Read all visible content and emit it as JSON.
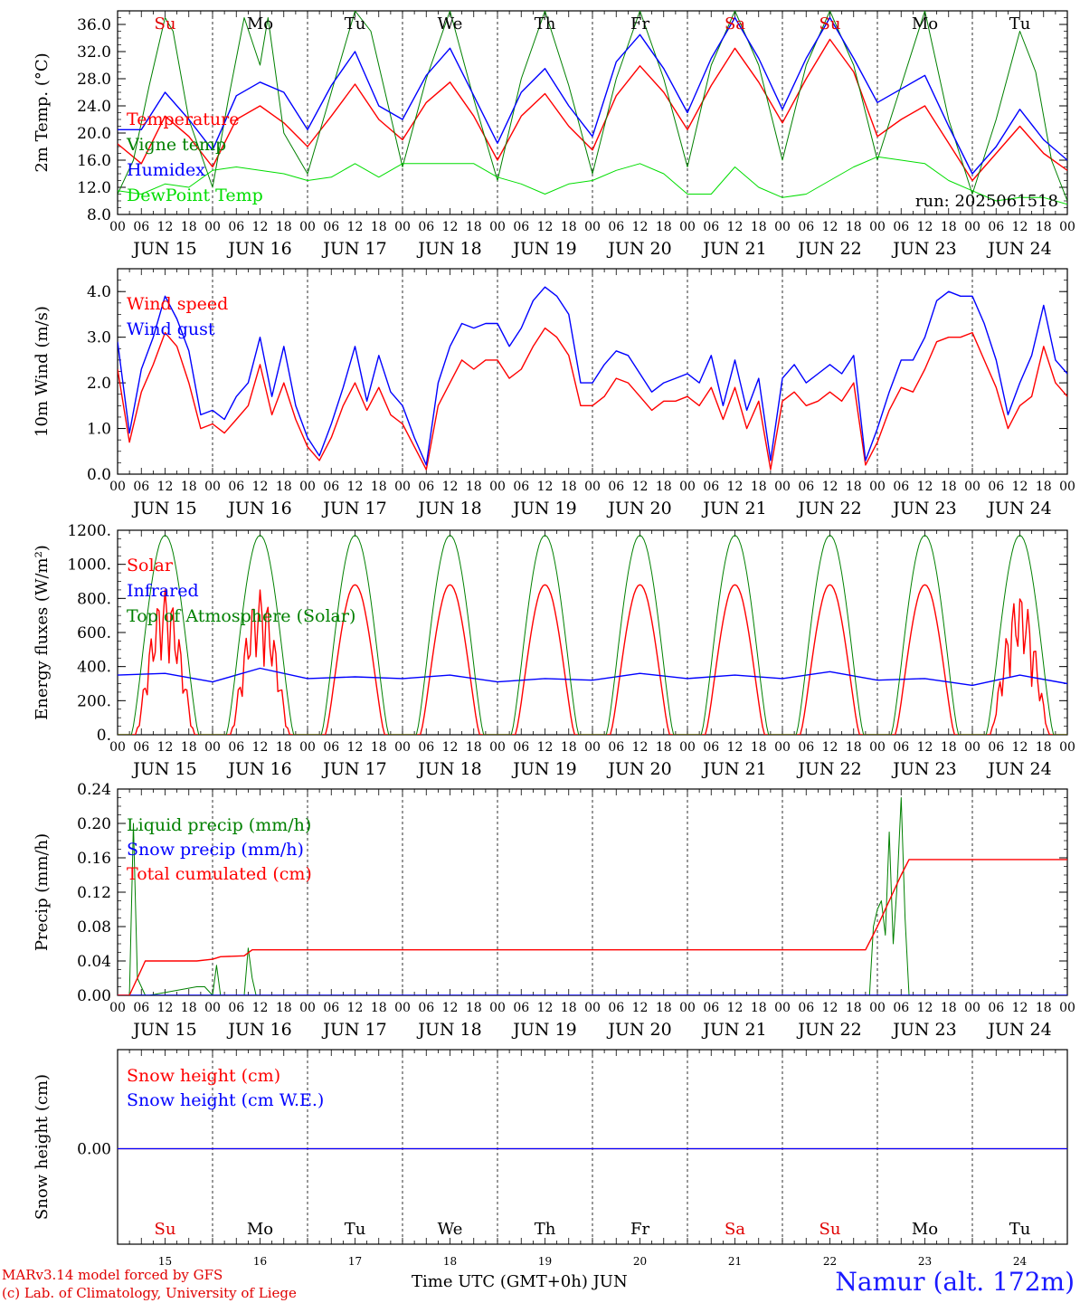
{
  "colors": {
    "red": "#ff0000",
    "blue": "#0000ff",
    "green": "#008000",
    "lightgreen": "#00dd00",
    "black": "#000000"
  },
  "day_names": [
    "Su",
    "Mo",
    "Tu",
    "We",
    "Th",
    "Fr",
    "Sa",
    "Su",
    "Mo",
    "Tu"
  ],
  "day_name_colors": [
    "#e00000",
    "#000000",
    "#000000",
    "#000000",
    "#000000",
    "#000000",
    "#e00000",
    "#e00000",
    "#000000",
    "#000000"
  ],
  "date_labels": [
    "JUN 15",
    "JUN 16",
    "JUN 17",
    "JUN 18",
    "JUN 19",
    "JUN 20",
    "JUN 21",
    "JUN 22",
    "JUN 23",
    "JUN 24"
  ],
  "day_numbers": [
    "15",
    "16",
    "17",
    "18",
    "19",
    "20",
    "21",
    "22",
    "23",
    "24"
  ],
  "hour_ticks": [
    "00",
    "06",
    "12",
    "18"
  ],
  "run_label": "run: 2025061518",
  "footer": {
    "credit_line1": "MARv3.14 model forced by GFS",
    "credit_line2": "(c) Lab. of Climatology, University of Liege",
    "xaxis_title": "Time UTC (GMT+0h) JUN",
    "station": "Namur (alt. 172m)"
  },
  "chart_data": [
    {
      "type": "line",
      "ylabel": "2m Temp. (°C)",
      "ylim": [
        8,
        38
      ],
      "yticks": [
        8.0,
        12.0,
        16.0,
        20.0,
        24.0,
        28.0,
        32.0,
        36.0
      ],
      "ytick_labels": [
        "8.0",
        "12.0",
        "16.0",
        "20.0",
        "24.0",
        "28.0",
        "32.0",
        "36.0"
      ],
      "x_unit": "hours since 2025-06-15 00 UTC",
      "series": [
        {
          "name": "Temperature",
          "color": "#ff0000",
          "x": [
            0,
            6,
            12,
            18,
            24,
            30,
            36,
            42,
            48,
            54,
            60,
            66,
            72,
            78,
            84,
            90,
            96,
            102,
            108,
            114,
            120,
            126,
            132,
            138,
            144,
            150,
            156,
            162,
            168,
            174,
            180,
            186,
            192,
            198,
            204,
            210,
            216,
            222,
            228,
            234,
            240
          ],
          "values": [
            18.4,
            15.5,
            22.5,
            19.5,
            15.0,
            22.0,
            24.0,
            21.5,
            18.0,
            22.5,
            27.2,
            22.0,
            19.0,
            24.5,
            27.5,
            22.5,
            16.0,
            22.5,
            25.8,
            21.0,
            17.5,
            25.5,
            29.9,
            26.0,
            20.5,
            27.0,
            32.5,
            27.5,
            21.5,
            28.0,
            33.8,
            29.0,
            19.5,
            22.0,
            24.0,
            18.5,
            13.0,
            17.0,
            21.0,
            17.0,
            14.5
          ]
        },
        {
          "name": "Vigne temp",
          "color": "#008000",
          "x": [
            0,
            4,
            8,
            12,
            14,
            18,
            24,
            28,
            32,
            36,
            38,
            42,
            48,
            54,
            60,
            64,
            72,
            78,
            84,
            90,
            96,
            102,
            108,
            114,
            120,
            126,
            132,
            138,
            144,
            150,
            156,
            162,
            168,
            174,
            180,
            186,
            192,
            198,
            204,
            210,
            216,
            222,
            228,
            232,
            236,
            240
          ],
          "values": [
            11.0,
            16.0,
            27.0,
            37.0,
            35.0,
            22.0,
            12.0,
            25.0,
            37.0,
            30.0,
            37.0,
            20.0,
            14.0,
            26.0,
            38.0,
            35.0,
            15.0,
            28.0,
            38.0,
            25.0,
            13.0,
            28.0,
            38.0,
            27.0,
            14.0,
            28.0,
            38.0,
            28.0,
            15.0,
            30.0,
            38.0,
            30.0,
            16.0,
            30.0,
            38.0,
            30.0,
            16.0,
            27.0,
            38.0,
            22.0,
            11.0,
            22.0,
            35.0,
            29.0,
            16.0,
            10.0
          ]
        },
        {
          "name": "Humidex",
          "color": "#0000ff",
          "x": [
            0,
            6,
            12,
            18,
            24,
            30,
            36,
            42,
            48,
            54,
            60,
            66,
            72,
            78,
            84,
            90,
            96,
            102,
            108,
            114,
            120,
            126,
            132,
            138,
            144,
            150,
            156,
            162,
            168,
            174,
            180,
            186,
            192,
            198,
            204,
            210,
            216,
            222,
            228,
            234,
            240
          ],
          "values": [
            20.5,
            20.5,
            26.0,
            22.0,
            17.5,
            25.5,
            27.5,
            26.0,
            20.5,
            27.0,
            32.0,
            24.0,
            22.0,
            28.5,
            32.5,
            25.5,
            18.5,
            26.0,
            29.5,
            24.0,
            19.5,
            30.5,
            34.5,
            29.5,
            23.0,
            31.0,
            37.0,
            31.0,
            23.5,
            31.0,
            37.0,
            31.0,
            24.5,
            26.5,
            28.5,
            21.0,
            14.0,
            18.0,
            23.5,
            19.0,
            16.0
          ]
        },
        {
          "name": "DewPoint Temp",
          "color": "#00dd00",
          "x": [
            0,
            6,
            12,
            18,
            24,
            30,
            36,
            42,
            48,
            54,
            60,
            66,
            72,
            78,
            84,
            90,
            96,
            102,
            108,
            114,
            120,
            126,
            132,
            138,
            144,
            150,
            156,
            162,
            168,
            174,
            180,
            186,
            192,
            198,
            204,
            210,
            216,
            222,
            228,
            234,
            240
          ],
          "values": [
            11.5,
            11.0,
            12.5,
            12.0,
            14.5,
            15.0,
            14.5,
            14.0,
            13.0,
            13.5,
            15.5,
            13.5,
            15.5,
            15.5,
            15.5,
            15.5,
            13.5,
            12.5,
            11.0,
            12.5,
            13.0,
            14.5,
            15.5,
            14.0,
            11.0,
            11.0,
            15.0,
            12.0,
            10.5,
            11.0,
            13.0,
            15.0,
            16.5,
            16.0,
            15.5,
            13.0,
            11.5,
            10.0,
            10.5,
            10.5,
            9.5
          ]
        }
      ]
    },
    {
      "type": "line",
      "ylabel": "10m Wind (m/s)",
      "ylim": [
        0,
        4.5
      ],
      "yticks": [
        0.0,
        1.0,
        2.0,
        3.0,
        4.0
      ],
      "ytick_labels": [
        "0.0",
        "1.0",
        "2.0",
        "3.0",
        "4.0"
      ],
      "x_unit": "hours since 2025-06-15 00 UTC",
      "series": [
        {
          "name": "Wind speed",
          "color": "#ff0000",
          "x": [
            0,
            3,
            6,
            9,
            12,
            15,
            18,
            21,
            24,
            27,
            30,
            33,
            36,
            39,
            42,
            45,
            48,
            51,
            54,
            57,
            60,
            63,
            66,
            69,
            72,
            75,
            78,
            81,
            84,
            87,
            90,
            93,
            96,
            99,
            102,
            105,
            108,
            111,
            114,
            117,
            120,
            123,
            126,
            129,
            132,
            135,
            138,
            141,
            144,
            147,
            150,
            153,
            156,
            159,
            162,
            165,
            168,
            171,
            174,
            177,
            180,
            183,
            186,
            189,
            192,
            195,
            198,
            201,
            204,
            207,
            210,
            213,
            216,
            219,
            222,
            225,
            228,
            231,
            234,
            237,
            240
          ],
          "values": [
            2.3,
            0.7,
            1.8,
            2.4,
            3.1,
            2.8,
            2.0,
            1.0,
            1.1,
            0.9,
            1.2,
            1.5,
            2.4,
            1.3,
            2.0,
            1.2,
            0.6,
            0.3,
            0.8,
            1.5,
            2.0,
            1.4,
            1.9,
            1.3,
            1.1,
            0.6,
            0.1,
            1.5,
            2.0,
            2.5,
            2.3,
            2.5,
            2.5,
            2.1,
            2.3,
            2.8,
            3.2,
            3.0,
            2.6,
            1.5,
            1.5,
            1.7,
            2.1,
            2.0,
            1.7,
            1.4,
            1.6,
            1.6,
            1.7,
            1.5,
            1.9,
            1.2,
            1.9,
            1.0,
            1.6,
            0.1,
            1.6,
            1.8,
            1.5,
            1.6,
            1.8,
            1.6,
            2.0,
            0.2,
            0.7,
            1.4,
            1.9,
            1.8,
            2.3,
            2.9,
            3.0,
            3.0,
            3.1,
            2.5,
            1.9,
            1.0,
            1.5,
            1.7,
            2.8,
            2.0,
            1.7
          ]
        },
        {
          "name": "Wind gust",
          "color": "#0000ff",
          "x": [
            0,
            3,
            6,
            9,
            12,
            15,
            18,
            21,
            24,
            27,
            30,
            33,
            36,
            39,
            42,
            45,
            48,
            51,
            54,
            57,
            60,
            63,
            66,
            69,
            72,
            75,
            78,
            81,
            84,
            87,
            90,
            93,
            96,
            99,
            102,
            105,
            108,
            111,
            114,
            117,
            120,
            123,
            126,
            129,
            132,
            135,
            138,
            141,
            144,
            147,
            150,
            153,
            156,
            159,
            162,
            165,
            168,
            171,
            174,
            177,
            180,
            183,
            186,
            189,
            192,
            195,
            198,
            201,
            204,
            207,
            210,
            213,
            216,
            219,
            222,
            225,
            228,
            231,
            234,
            237,
            240
          ],
          "values": [
            2.9,
            0.9,
            2.3,
            3.0,
            3.9,
            3.4,
            2.7,
            1.3,
            1.4,
            1.2,
            1.7,
            2.0,
            3.0,
            1.7,
            2.8,
            1.5,
            0.8,
            0.4,
            1.1,
            1.9,
            2.8,
            1.6,
            2.6,
            1.8,
            1.5,
            0.8,
            0.2,
            2.0,
            2.8,
            3.3,
            3.2,
            3.3,
            3.3,
            2.8,
            3.2,
            3.8,
            4.1,
            3.9,
            3.5,
            2.0,
            2.0,
            2.4,
            2.7,
            2.6,
            2.2,
            1.8,
            2.0,
            2.1,
            2.2,
            2.0,
            2.6,
            1.5,
            2.5,
            1.4,
            2.1,
            0.3,
            2.1,
            2.4,
            2.0,
            2.2,
            2.4,
            2.2,
            2.6,
            0.3,
            1.0,
            1.8,
            2.5,
            2.5,
            3.0,
            3.8,
            4.0,
            3.9,
            3.9,
            3.3,
            2.5,
            1.3,
            2.0,
            2.6,
            3.7,
            2.5,
            2.2
          ]
        }
      ]
    },
    {
      "type": "line",
      "ylabel": "Energy fluxes (W/m²)",
      "ylim": [
        0,
        1200
      ],
      "yticks": [
        0,
        200,
        400,
        600,
        800,
        1000,
        1200
      ],
      "ytick_labels": [
        "0.",
        "200.",
        "400.",
        "600.",
        "800.",
        "1000.",
        "1200."
      ],
      "x_unit": "hours since 2025-06-15 00 UTC",
      "series": [
        {
          "name": "Solar",
          "color": "#ff0000",
          "daily_peak_wm2": [
            850,
            850,
            880,
            880,
            880,
            880,
            880,
            880,
            880,
            830
          ],
          "cloudy_days": [
            0,
            1,
            9
          ]
        },
        {
          "name": "Infrared",
          "color": "#0000ff",
          "x": [
            0,
            12,
            24,
            36,
            48,
            60,
            72,
            84,
            96,
            108,
            120,
            132,
            144,
            156,
            168,
            180,
            192,
            204,
            216,
            228,
            240
          ],
          "values": [
            350,
            360,
            310,
            390,
            330,
            340,
            330,
            350,
            310,
            330,
            320,
            360,
            330,
            350,
            330,
            370,
            320,
            330,
            290,
            350,
            300
          ]
        },
        {
          "name": "Top of Atmosphere (Solar)",
          "color": "#008000",
          "daily_peak_wm2": [
            1170,
            1170,
            1170,
            1170,
            1170,
            1170,
            1170,
            1170,
            1170,
            1170
          ]
        }
      ]
    },
    {
      "type": "line",
      "ylabel": "Precip (mm/h)",
      "ylim": [
        0,
        0.24
      ],
      "yticks": [
        0.0,
        0.04,
        0.08,
        0.12,
        0.16,
        0.2,
        0.24
      ],
      "ytick_labels": [
        "0.00",
        "0.04",
        "0.08",
        "0.12",
        "0.16",
        "0.20",
        "0.24"
      ],
      "x_unit": "hours since 2025-06-15 00 UTC",
      "series": [
        {
          "name": "Liquid precip (mm/h)",
          "color": "#008000",
          "x": [
            0,
            3,
            4,
            5,
            7,
            8,
            20,
            22,
            24,
            25,
            26,
            27,
            28,
            32,
            33,
            34,
            35,
            36,
            190,
            191,
            192,
            193,
            194,
            195,
            196,
            197,
            198,
            199,
            200,
            201,
            240
          ],
          "values": [
            0,
            0,
            0.2,
            0.02,
            0,
            0,
            0.01,
            0.01,
            0,
            0.035,
            0,
            0,
            0,
            0,
            0.055,
            0.02,
            0,
            0,
            0,
            0.08,
            0.1,
            0.11,
            0.07,
            0.19,
            0.06,
            0.13,
            0.23,
            0.09,
            0,
            0,
            0
          ]
        },
        {
          "name": "Snow precip (mm/h)",
          "color": "#0000ff",
          "x": [
            0,
            240
          ],
          "values": [
            0,
            0
          ]
        },
        {
          "name": "Total cumulated (cm)",
          "color": "#ff0000",
          "x": [
            0,
            3,
            5,
            7,
            9,
            20,
            24,
            26,
            32,
            34,
            36,
            189,
            192,
            195,
            198,
            200,
            240
          ],
          "values": [
            0,
            0,
            0.02,
            0.04,
            0.04,
            0.04,
            0.042,
            0.045,
            0.046,
            0.053,
            0.053,
            0.053,
            0.08,
            0.11,
            0.14,
            0.158,
            0.158
          ]
        }
      ]
    },
    {
      "type": "line",
      "ylabel": "Snow height (cm)",
      "yticks": [
        0.0
      ],
      "ytick_labels": [
        "0.00"
      ],
      "x_unit": "hours since 2025-06-15 00 UTC",
      "series": [
        {
          "name": "Snow height (cm)",
          "color": "#ff0000",
          "x": [
            0,
            240
          ],
          "values": [
            0,
            0
          ]
        },
        {
          "name": "Snow height (cm W.E.)",
          "color": "#0000ff",
          "x": [
            0,
            240
          ],
          "values": [
            0,
            0
          ]
        }
      ]
    }
  ]
}
